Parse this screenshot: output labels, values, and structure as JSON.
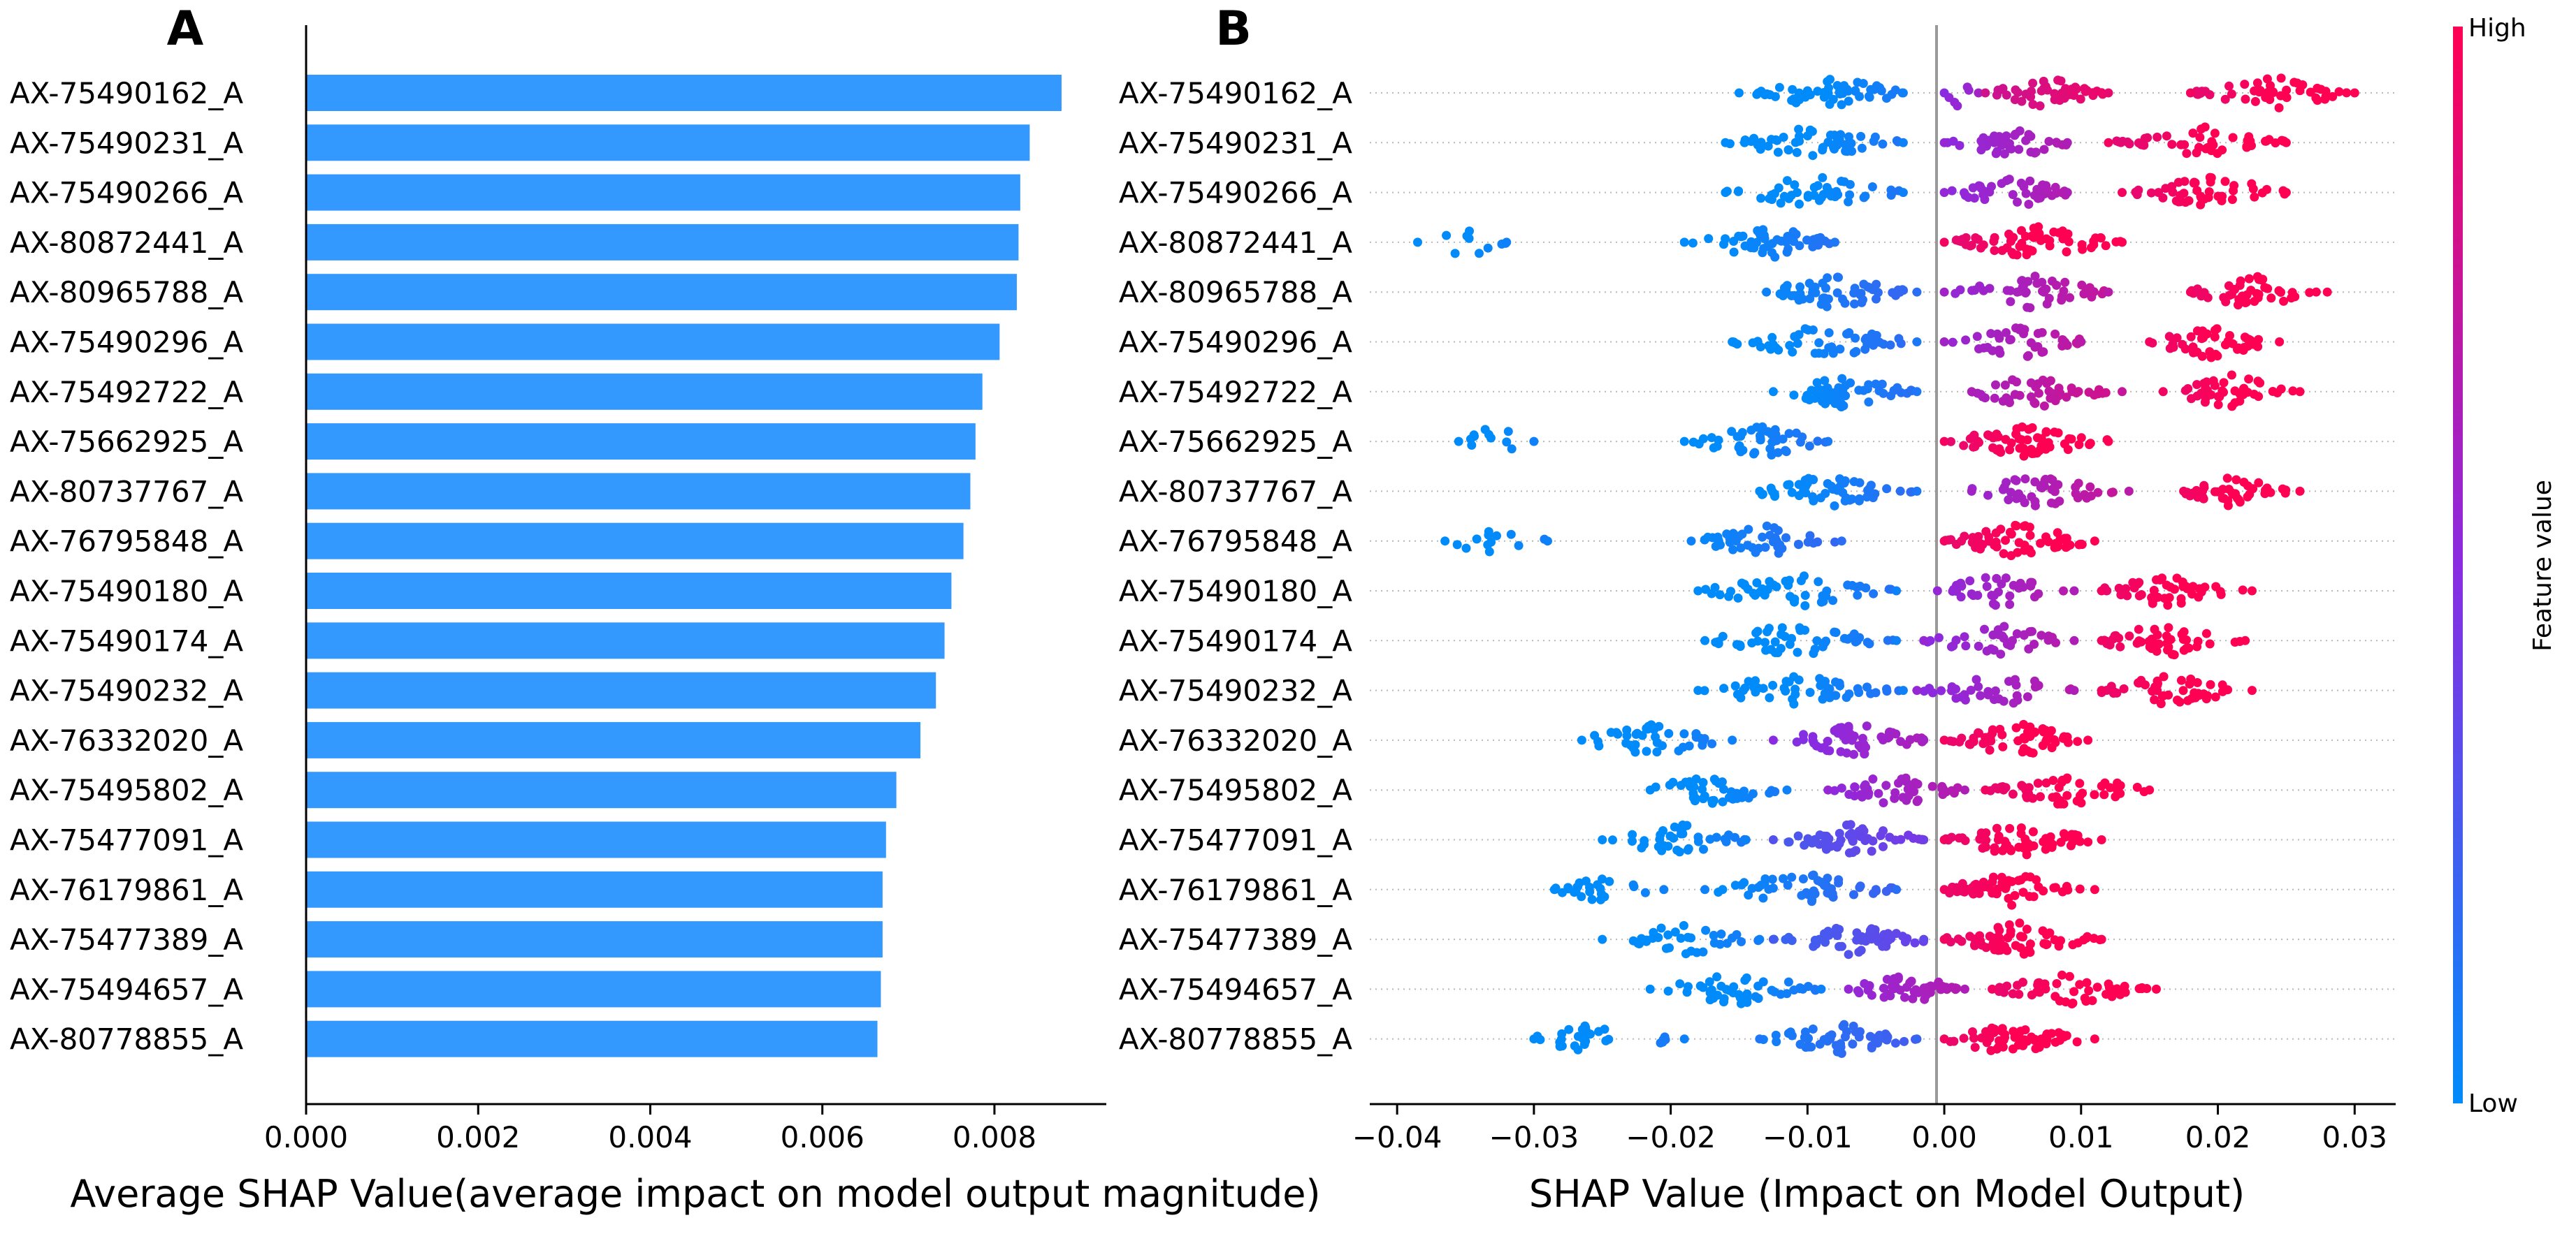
{
  "chart_data": [
    {
      "panel": "A",
      "type": "bar",
      "orientation": "horizontal",
      "xlabel": "Average SHAP Value(average impact on model output magnitude)",
      "xlim": [
        0.0,
        0.0093
      ],
      "xticks": [
        "0.000",
        "0.002",
        "0.004",
        "0.006",
        "0.008"
      ],
      "xtick_values": [
        0.0,
        0.002,
        0.004,
        0.006,
        0.008
      ],
      "bar_color": "#3399ff",
      "categories": [
        "AX-75490162_A",
        "AX-75490231_A",
        "AX-75490266_A",
        "AX-80872441_A",
        "AX-80965788_A",
        "AX-75490296_A",
        "AX-75492722_A",
        "AX-75662925_A",
        "AX-80737767_A",
        "AX-76795848_A",
        "AX-75490180_A",
        "AX-75490174_A",
        "AX-75490232_A",
        "AX-76332020_A",
        "AX-75495802_A",
        "AX-75477091_A",
        "AX-76179861_A",
        "AX-75477389_A",
        "AX-75494657_A",
        "AX-80778855_A"
      ],
      "values": [
        0.00878,
        0.00841,
        0.0083,
        0.00828,
        0.00826,
        0.00806,
        0.00786,
        0.00778,
        0.00772,
        0.00764,
        0.0075,
        0.00742,
        0.00732,
        0.00714,
        0.00686,
        0.00674,
        0.0067,
        0.0067,
        0.00668,
        0.00664
      ]
    },
    {
      "panel": "B",
      "type": "scatter",
      "subtype": "beeswarm",
      "xlabel": "SHAP Value (Impact on Model Output)",
      "xlim": [
        -0.042,
        0.033
      ],
      "xticks": [
        "−0.04",
        "−0.03",
        "−0.02",
        "−0.01",
        "0.00",
        "0.01",
        "0.02",
        "0.03"
      ],
      "xtick_values": [
        -0.04,
        -0.03,
        -0.02,
        -0.01,
        0.0,
        0.01,
        0.02,
        0.03
      ],
      "colorbar": {
        "label": "Feature value",
        "high": "High",
        "low": "Low",
        "low_color": "#008bfb",
        "mid_color": "#8a2be2",
        "high_color": "#ff0052"
      },
      "features": [
        {
          "name": "AX-75490162_A",
          "groups": [
            {
              "range": [
                -0.015,
                -0.003
              ],
              "center": -0.0085,
              "v": 0.0,
              "n": 55
            },
            {
              "range": [
                0.0,
                0.0025
              ],
              "center": 0.0012,
              "v": 0.55,
              "n": 5
            },
            {
              "range": [
                0.003,
                0.012
              ],
              "center": 0.0075,
              "v": 0.85,
              "n": 45
            },
            {
              "range": [
                0.018,
                0.03
              ],
              "center": 0.024,
              "v": 1.0,
              "n": 45
            }
          ]
        },
        {
          "name": "AX-75490231_A",
          "groups": [
            {
              "range": [
                -0.016,
                -0.003
              ],
              "center": -0.0095,
              "v": 0.0,
              "n": 55
            },
            {
              "range": [
                0.0,
                0.009
              ],
              "center": 0.005,
              "v": 0.6,
              "n": 40
            },
            {
              "range": [
                0.012,
                0.025
              ],
              "center": 0.0195,
              "v": 1.0,
              "n": 45
            }
          ]
        },
        {
          "name": "AX-75490266_A",
          "groups": [
            {
              "range": [
                -0.016,
                -0.003
              ],
              "center": -0.0095,
              "v": 0.0,
              "n": 50
            },
            {
              "range": [
                0.0,
                0.009
              ],
              "center": 0.005,
              "v": 0.6,
              "n": 40
            },
            {
              "range": [
                0.013,
                0.025
              ],
              "center": 0.0195,
              "v": 1.0,
              "n": 45
            }
          ]
        },
        {
          "name": "AX-80872441_A",
          "groups": [
            {
              "range": [
                -0.0385,
                -0.032
              ],
              "center": -0.035,
              "v": 0.0,
              "n": 9
            },
            {
              "range": [
                -0.019,
                -0.008
              ],
              "center": -0.013,
              "v": 0.05,
              "n": 50
            },
            {
              "range": [
                0.0,
                0.013
              ],
              "center": 0.0065,
              "v": 1.0,
              "n": 65
            }
          ]
        },
        {
          "name": "AX-80965788_A",
          "groups": [
            {
              "range": [
                -0.013,
                -0.002
              ],
              "center": -0.008,
              "v": 0.1,
              "n": 55
            },
            {
              "range": [
                0.0,
                0.012
              ],
              "center": 0.0065,
              "v": 0.65,
              "n": 45
            },
            {
              "range": [
                0.018,
                0.028
              ],
              "center": 0.0225,
              "v": 1.0,
              "n": 45
            }
          ]
        },
        {
          "name": "AX-75490296_A",
          "groups": [
            {
              "range": [
                -0.0155,
                -0.002
              ],
              "center": -0.009,
              "v": 0.05,
              "n": 50
            },
            {
              "range": [
                0.0,
                0.01
              ],
              "center": 0.0055,
              "v": 0.65,
              "n": 40
            },
            {
              "range": [
                0.015,
                0.0245
              ],
              "center": 0.0195,
              "v": 1.0,
              "n": 45
            }
          ]
        },
        {
          "name": "AX-75492722_A",
          "groups": [
            {
              "range": [
                -0.0125,
                -0.002
              ],
              "center": -0.0075,
              "v": 0.05,
              "n": 55
            },
            {
              "range": [
                0.002,
                0.013
              ],
              "center": 0.0065,
              "v": 0.7,
              "n": 45
            },
            {
              "range": [
                0.016,
                0.026
              ],
              "center": 0.021,
              "v": 1.0,
              "n": 40
            }
          ]
        },
        {
          "name": "AX-75662925_A",
          "groups": [
            {
              "range": [
                -0.0355,
                -0.03
              ],
              "center": -0.033,
              "v": 0.0,
              "n": 10
            },
            {
              "range": [
                -0.019,
                -0.0085
              ],
              "center": -0.0135,
              "v": 0.05,
              "n": 45
            },
            {
              "range": [
                0.0,
                0.012
              ],
              "center": 0.006,
              "v": 1.0,
              "n": 60
            }
          ]
        },
        {
          "name": "AX-80737767_A",
          "groups": [
            {
              "range": [
                -0.0135,
                -0.002
              ],
              "center": -0.0085,
              "v": 0.05,
              "n": 55
            },
            {
              "range": [
                0.002,
                0.0135
              ],
              "center": 0.007,
              "v": 0.65,
              "n": 45
            },
            {
              "range": [
                0.0175,
                0.026
              ],
              "center": 0.021,
              "v": 1.0,
              "n": 40
            }
          ]
        },
        {
          "name": "AX-76795848_A",
          "groups": [
            {
              "range": [
                -0.0365,
                -0.029
              ],
              "center": -0.033,
              "v": 0.0,
              "n": 12
            },
            {
              "range": [
                -0.0185,
                -0.0075
              ],
              "center": -0.013,
              "v": 0.1,
              "n": 45
            },
            {
              "range": [
                0.0,
                0.011
              ],
              "center": 0.0055,
              "v": 1.0,
              "n": 60
            }
          ]
        },
        {
          "name": "AX-75490180_A",
          "groups": [
            {
              "range": [
                -0.018,
                -0.0035
              ],
              "center": -0.011,
              "v": 0.0,
              "n": 50
            },
            {
              "range": [
                -0.0005,
                0.0095
              ],
              "center": 0.004,
              "v": 0.6,
              "n": 35
            },
            {
              "range": [
                0.0115,
                0.0225
              ],
              "center": 0.0165,
              "v": 1.0,
              "n": 45
            }
          ]
        },
        {
          "name": "AX-75490174_A",
          "groups": [
            {
              "range": [
                -0.0175,
                -0.0035
              ],
              "center": -0.011,
              "v": 0.0,
              "n": 50
            },
            {
              "range": [
                -0.0015,
                0.0095
              ],
              "center": 0.004,
              "v": 0.6,
              "n": 35
            },
            {
              "range": [
                0.0115,
                0.022
              ],
              "center": 0.016,
              "v": 1.0,
              "n": 45
            }
          ]
        },
        {
          "name": "AX-75490232_A",
          "groups": [
            {
              "range": [
                -0.018,
                -0.003
              ],
              "center": -0.011,
              "v": 0.0,
              "n": 50
            },
            {
              "range": [
                -0.002,
                0.0095
              ],
              "center": 0.004,
              "v": 0.6,
              "n": 35
            },
            {
              "range": [
                0.0115,
                0.0225
              ],
              "center": 0.0165,
              "v": 1.0,
              "n": 45
            }
          ]
        },
        {
          "name": "AX-76332020_A",
          "groups": [
            {
              "range": [
                -0.0265,
                -0.0155
              ],
              "center": -0.0215,
              "v": 0.0,
              "n": 40
            },
            {
              "range": [
                -0.0125,
                -0.0015
              ],
              "center": -0.0065,
              "v": 0.55,
              "n": 55
            },
            {
              "range": [
                0.0,
                0.0105
              ],
              "center": 0.0055,
              "v": 1.0,
              "n": 55
            }
          ]
        },
        {
          "name": "AX-75495802_A",
          "groups": [
            {
              "range": [
                -0.0215,
                -0.0115
              ],
              "center": -0.017,
              "v": 0.0,
              "n": 40
            },
            {
              "range": [
                -0.0085,
                0.0015
              ],
              "center": -0.0035,
              "v": 0.6,
              "n": 45
            },
            {
              "range": [
                0.003,
                0.015
              ],
              "center": 0.009,
              "v": 1.0,
              "n": 50
            }
          ]
        },
        {
          "name": "AX-75477091_A",
          "groups": [
            {
              "range": [
                -0.025,
                -0.0145
              ],
              "center": -0.0195,
              "v": 0.0,
              "n": 40
            },
            {
              "range": [
                -0.0125,
                -0.0015
              ],
              "center": -0.0065,
              "v": 0.35,
              "n": 50
            },
            {
              "range": [
                0.0,
                0.0115
              ],
              "center": 0.0055,
              "v": 1.0,
              "n": 55
            }
          ]
        },
        {
          "name": "AX-76179861_A",
          "groups": [
            {
              "range": [
                -0.0285,
                -0.0205
              ],
              "center": -0.0245,
              "v": 0.0,
              "n": 25
            },
            {
              "range": [
                -0.0175,
                -0.0035
              ],
              "center": -0.0105,
              "v": 0.1,
              "n": 50
            },
            {
              "range": [
                0.0,
                0.011
              ],
              "center": 0.005,
              "v": 1.0,
              "n": 55
            }
          ]
        },
        {
          "name": "AX-75477389_A",
          "groups": [
            {
              "range": [
                -0.025,
                -0.0135
              ],
              "center": -0.019,
              "v": 0.0,
              "n": 35
            },
            {
              "range": [
                -0.0125,
                -0.0015
              ],
              "center": -0.0065,
              "v": 0.3,
              "n": 50
            },
            {
              "range": [
                0.0,
                0.0115
              ],
              "center": 0.0055,
              "v": 1.0,
              "n": 60
            }
          ]
        },
        {
          "name": "AX-75494657_A",
          "groups": [
            {
              "range": [
                -0.0215,
                -0.009
              ],
              "center": -0.015,
              "v": 0.0,
              "n": 45
            },
            {
              "range": [
                -0.007,
                0.0015
              ],
              "center": -0.003,
              "v": 0.6,
              "n": 45
            },
            {
              "range": [
                0.0035,
                0.0155
              ],
              "center": 0.009,
              "v": 1.0,
              "n": 50
            }
          ]
        },
        {
          "name": "AX-80778855_A",
          "groups": [
            {
              "range": [
                -0.03,
                -0.019
              ],
              "center": -0.025,
              "v": 0.0,
              "n": 30
            },
            {
              "range": [
                -0.0135,
                -0.002
              ],
              "center": -0.008,
              "v": 0.15,
              "n": 50
            },
            {
              "range": [
                0.0,
                0.011
              ],
              "center": 0.005,
              "v": 1.0,
              "n": 55
            }
          ]
        }
      ]
    }
  ],
  "panels": {
    "a_letter": "A",
    "b_letter": "B"
  }
}
